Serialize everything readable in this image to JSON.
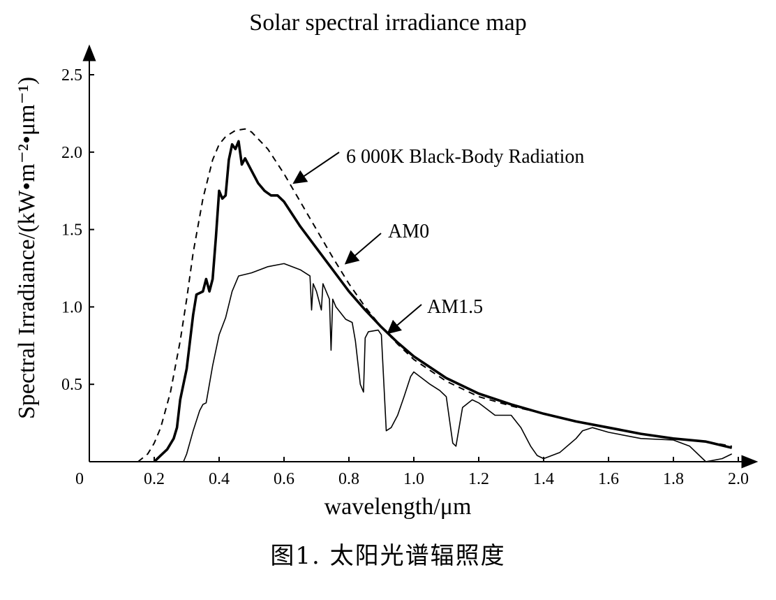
{
  "chart_data": {
    "type": "line",
    "title": "Solar spectral irradiance map",
    "xlabel": "wavelength/μm",
    "ylabel": "Spectral Irradiance/(kW•m⁻²•μm⁻¹)",
    "caption": "图1. 太阳光谱辐照度",
    "xlim": [
      0,
      2.0
    ],
    "ylim": [
      0,
      2.5
    ],
    "x_ticks": [
      "0",
      "0.2",
      "0.4",
      "0.6",
      "0.8",
      "1.0",
      "1.2",
      "1.4",
      "1.6",
      "1.8",
      "2.0"
    ],
    "y_ticks": [
      "0.5",
      "1.0",
      "1.5",
      "2.0",
      "2.5"
    ],
    "grid": false,
    "series": [
      {
        "name": "6 000K Black-Body Radiation",
        "style": "dashed",
        "x": [
          0.15,
          0.18,
          0.2,
          0.22,
          0.25,
          0.28,
          0.3,
          0.32,
          0.35,
          0.38,
          0.4,
          0.42,
          0.45,
          0.48,
          0.5,
          0.55,
          0.6,
          0.65,
          0.7,
          0.75,
          0.8,
          0.85,
          0.9,
          0.95,
          1.0,
          1.1,
          1.2,
          1.3,
          1.4,
          1.5,
          1.6,
          1.7,
          1.8,
          1.9,
          1.98
        ],
        "values": [
          0.0,
          0.05,
          0.12,
          0.22,
          0.45,
          0.78,
          1.05,
          1.35,
          1.7,
          1.95,
          2.05,
          2.1,
          2.14,
          2.15,
          2.13,
          2.02,
          1.86,
          1.68,
          1.5,
          1.32,
          1.15,
          1.0,
          0.87,
          0.76,
          0.66,
          0.52,
          0.42,
          0.36,
          0.31,
          0.26,
          0.22,
          0.18,
          0.15,
          0.13,
          0.1
        ]
      },
      {
        "name": "AM0",
        "style": "solid-bold",
        "x": [
          0.2,
          0.22,
          0.24,
          0.26,
          0.27,
          0.28,
          0.3,
          0.32,
          0.33,
          0.35,
          0.36,
          0.37,
          0.38,
          0.39,
          0.4,
          0.41,
          0.42,
          0.43,
          0.44,
          0.45,
          0.46,
          0.47,
          0.48,
          0.5,
          0.52,
          0.54,
          0.56,
          0.58,
          0.6,
          0.65,
          0.7,
          0.75,
          0.8,
          0.85,
          0.9,
          0.95,
          1.0,
          1.1,
          1.2,
          1.3,
          1.4,
          1.5,
          1.6,
          1.7,
          1.8,
          1.9,
          1.98
        ],
        "values": [
          0.0,
          0.04,
          0.08,
          0.15,
          0.22,
          0.4,
          0.6,
          0.95,
          1.08,
          1.1,
          1.18,
          1.1,
          1.18,
          1.45,
          1.75,
          1.7,
          1.72,
          1.95,
          2.05,
          2.02,
          2.07,
          1.92,
          1.96,
          1.88,
          1.8,
          1.75,
          1.72,
          1.72,
          1.68,
          1.52,
          1.38,
          1.24,
          1.1,
          0.98,
          0.87,
          0.77,
          0.68,
          0.54,
          0.44,
          0.37,
          0.31,
          0.26,
          0.22,
          0.18,
          0.15,
          0.13,
          0.09
        ]
      },
      {
        "name": "AM1.5",
        "style": "solid-thin",
        "x": [
          0.29,
          0.3,
          0.32,
          0.34,
          0.35,
          0.36,
          0.38,
          0.4,
          0.42,
          0.44,
          0.46,
          0.5,
          0.55,
          0.6,
          0.65,
          0.68,
          0.685,
          0.69,
          0.7,
          0.715,
          0.72,
          0.74,
          0.745,
          0.75,
          0.76,
          0.79,
          0.81,
          0.82,
          0.835,
          0.845,
          0.85,
          0.86,
          0.89,
          0.9,
          0.915,
          0.93,
          0.95,
          0.97,
          0.99,
          1.0,
          1.05,
          1.08,
          1.1,
          1.12,
          1.13,
          1.15,
          1.18,
          1.2,
          1.25,
          1.3,
          1.33,
          1.36,
          1.38,
          1.4,
          1.45,
          1.5,
          1.52,
          1.55,
          1.6,
          1.7,
          1.8,
          1.85,
          1.9,
          1.95,
          1.98
        ],
        "values": [
          0.0,
          0.05,
          0.2,
          0.33,
          0.37,
          0.38,
          0.62,
          0.82,
          0.93,
          1.1,
          1.2,
          1.22,
          1.26,
          1.28,
          1.24,
          1.2,
          0.98,
          1.15,
          1.1,
          0.98,
          1.15,
          1.05,
          0.72,
          1.05,
          1.0,
          0.92,
          0.9,
          0.78,
          0.5,
          0.45,
          0.8,
          0.84,
          0.85,
          0.82,
          0.2,
          0.22,
          0.3,
          0.42,
          0.55,
          0.58,
          0.5,
          0.46,
          0.42,
          0.12,
          0.1,
          0.35,
          0.4,
          0.38,
          0.3,
          0.3,
          0.22,
          0.1,
          0.04,
          0.02,
          0.06,
          0.15,
          0.2,
          0.22,
          0.19,
          0.15,
          0.14,
          0.1,
          0.0,
          0.02,
          0.05
        ]
      }
    ],
    "annotations": [
      {
        "text": "6 000K  Black-Body Radiation",
        "series": "6 000K Black-Body Radiation",
        "arrow_to": [
          0.63,
          1.8
        ]
      },
      {
        "text": "AM0",
        "series": "AM0",
        "arrow_to": [
          0.79,
          1.28
        ]
      },
      {
        "text": "AM1.5",
        "series": "AM1.5",
        "arrow_to": [
          0.92,
          0.83
        ]
      }
    ]
  }
}
